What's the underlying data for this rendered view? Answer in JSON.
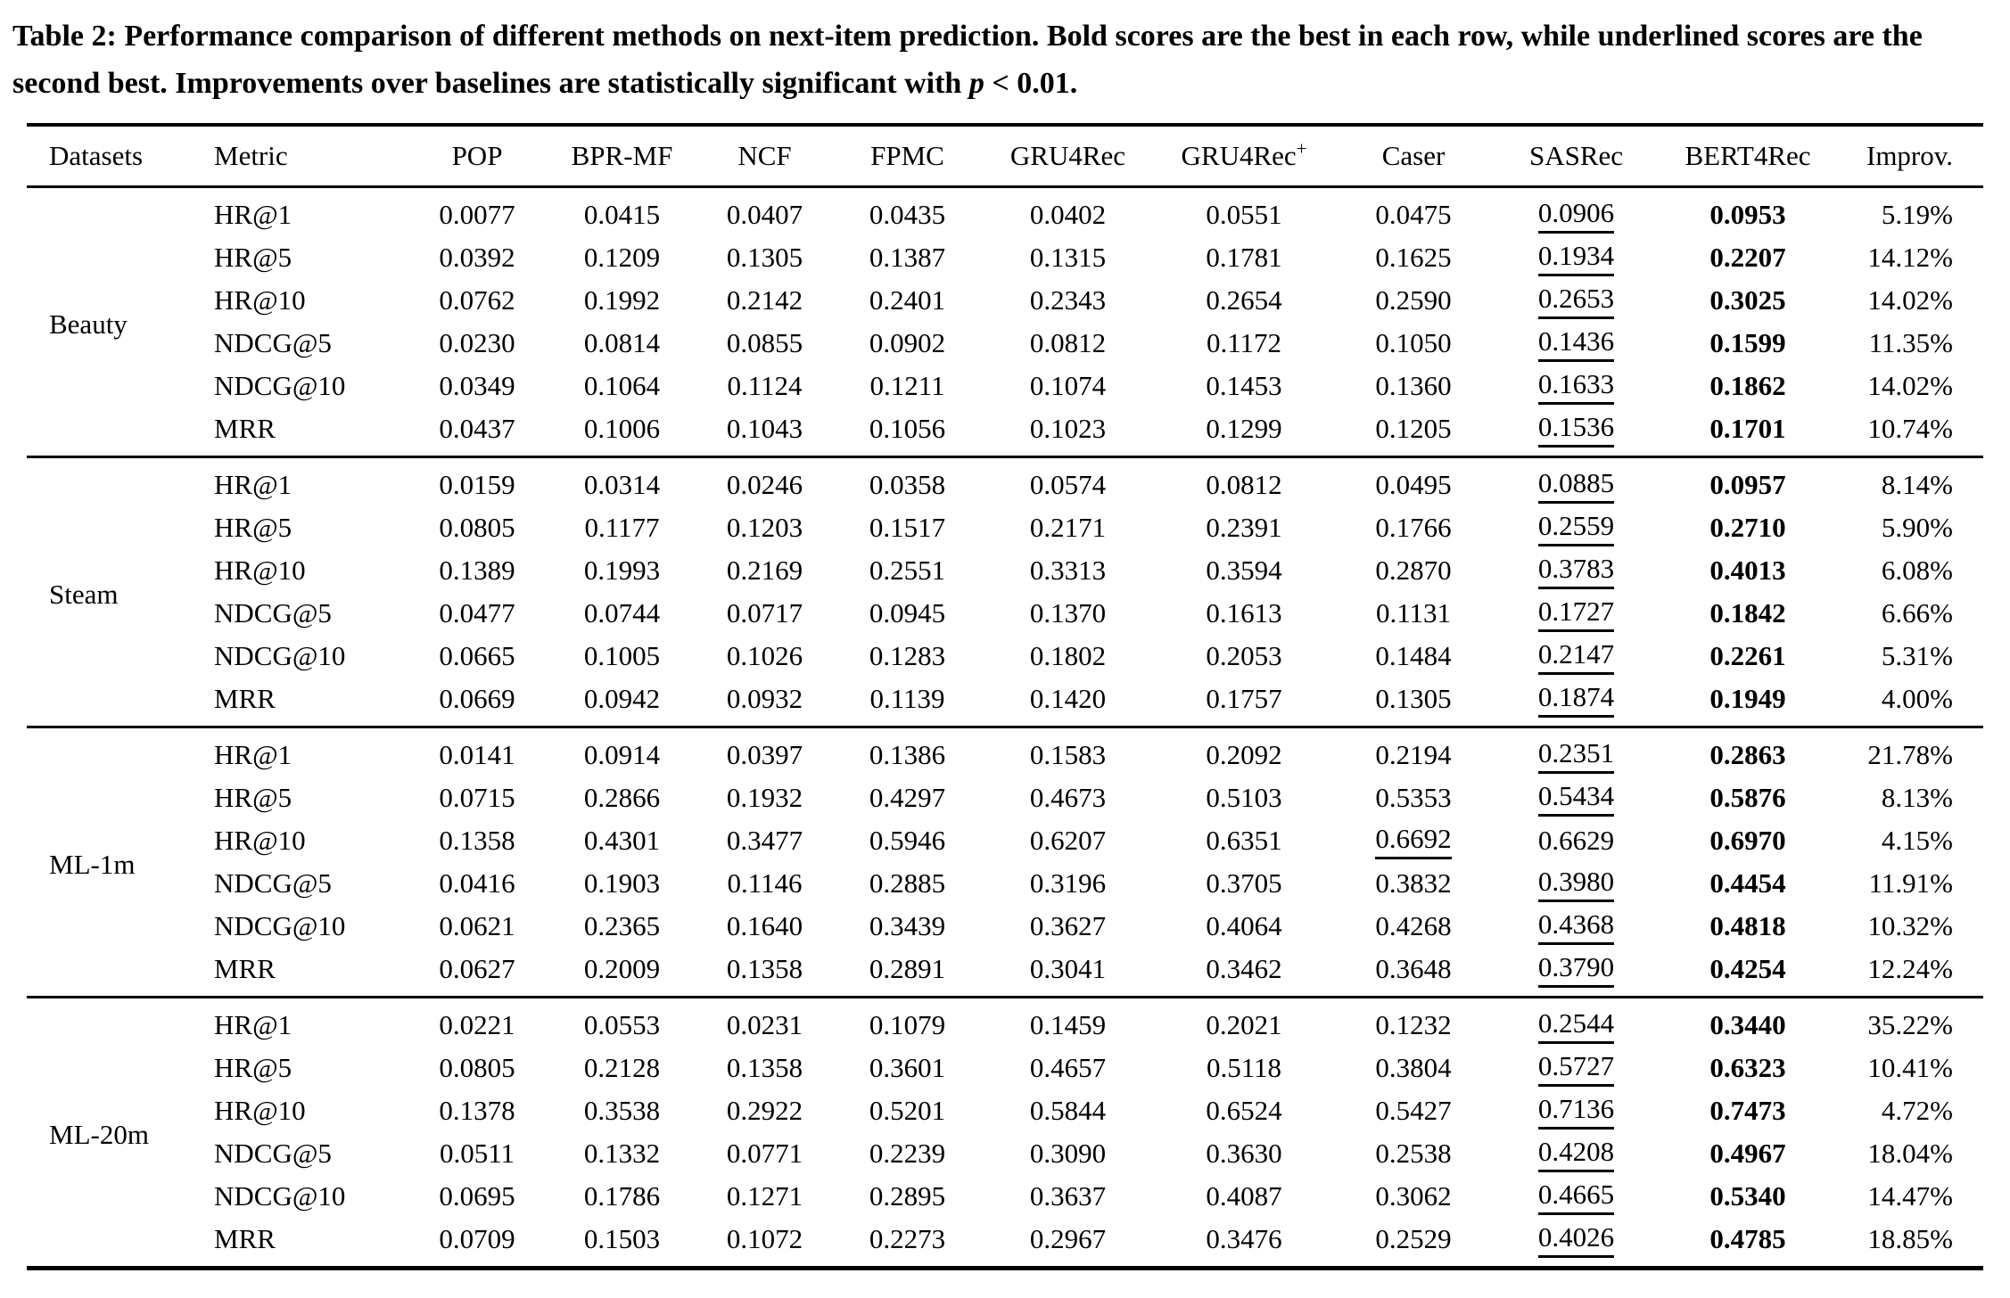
{
  "page": {
    "background": "#ffffff",
    "text_color": "#000000",
    "rule_color": "#000000"
  },
  "caption": {
    "lead": "Table 2: Performance comparison of different methods on next-item prediction. Bold scores are the best in each row, while underlined scores are the second best. Improvements over baselines are statistically significant with ",
    "math_var": "p",
    "tail": " < 0.01."
  },
  "table": {
    "columns": [
      {
        "label": "Datasets"
      },
      {
        "label": "Metric"
      },
      {
        "label": "POP"
      },
      {
        "label": "BPR-MF"
      },
      {
        "label": "NCF"
      },
      {
        "label": "FPMC"
      },
      {
        "label": "GRU4Rec"
      },
      {
        "label": "GRU4Rec",
        "sup": "+"
      },
      {
        "label": "Caser"
      },
      {
        "label": "SASRec"
      },
      {
        "label": "BERT4Rec"
      },
      {
        "label": "Improv."
      }
    ],
    "groups": [
      {
        "dataset": "Beauty",
        "rows": [
          {
            "metric": "HR@1",
            "values": [
              "0.0077",
              "0.0415",
              "0.0407",
              "0.0435",
              "0.0402",
              "0.0551",
              "0.0475",
              "0.0906",
              "0.0953"
            ],
            "second": 7,
            "best": 8,
            "improv": "5.19%"
          },
          {
            "metric": "HR@5",
            "values": [
              "0.0392",
              "0.1209",
              "0.1305",
              "0.1387",
              "0.1315",
              "0.1781",
              "0.1625",
              "0.1934",
              "0.2207"
            ],
            "second": 7,
            "best": 8,
            "improv": "14.12%"
          },
          {
            "metric": "HR@10",
            "values": [
              "0.0762",
              "0.1992",
              "0.2142",
              "0.2401",
              "0.2343",
              "0.2654",
              "0.2590",
              "0.2653",
              "0.3025"
            ],
            "second": 7,
            "best": 8,
            "improv": "14.02%"
          },
          {
            "metric": "NDCG@5",
            "values": [
              "0.0230",
              "0.0814",
              "0.0855",
              "0.0902",
              "0.0812",
              "0.1172",
              "0.1050",
              "0.1436",
              "0.1599"
            ],
            "second": 7,
            "best": 8,
            "improv": "11.35%"
          },
          {
            "metric": "NDCG@10",
            "values": [
              "0.0349",
              "0.1064",
              "0.1124",
              "0.1211",
              "0.1074",
              "0.1453",
              "0.1360",
              "0.1633",
              "0.1862"
            ],
            "second": 7,
            "best": 8,
            "improv": "14.02%"
          },
          {
            "metric": "MRR",
            "values": [
              "0.0437",
              "0.1006",
              "0.1043",
              "0.1056",
              "0.1023",
              "0.1299",
              "0.1205",
              "0.1536",
              "0.1701"
            ],
            "second": 7,
            "best": 8,
            "improv": "10.74%"
          }
        ]
      },
      {
        "dataset": "Steam",
        "rows": [
          {
            "metric": "HR@1",
            "values": [
              "0.0159",
              "0.0314",
              "0.0246",
              "0.0358",
              "0.0574",
              "0.0812",
              "0.0495",
              "0.0885",
              "0.0957"
            ],
            "second": 7,
            "best": 8,
            "improv": "8.14%"
          },
          {
            "metric": "HR@5",
            "values": [
              "0.0805",
              "0.1177",
              "0.1203",
              "0.1517",
              "0.2171",
              "0.2391",
              "0.1766",
              "0.2559",
              "0.2710"
            ],
            "second": 7,
            "best": 8,
            "improv": "5.90%"
          },
          {
            "metric": "HR@10",
            "values": [
              "0.1389",
              "0.1993",
              "0.2169",
              "0.2551",
              "0.3313",
              "0.3594",
              "0.2870",
              "0.3783",
              "0.4013"
            ],
            "second": 7,
            "best": 8,
            "improv": "6.08%"
          },
          {
            "metric": "NDCG@5",
            "values": [
              "0.0477",
              "0.0744",
              "0.0717",
              "0.0945",
              "0.1370",
              "0.1613",
              "0.1131",
              "0.1727",
              "0.1842"
            ],
            "second": 7,
            "best": 8,
            "improv": "6.66%"
          },
          {
            "metric": "NDCG@10",
            "values": [
              "0.0665",
              "0.1005",
              "0.1026",
              "0.1283",
              "0.1802",
              "0.2053",
              "0.1484",
              "0.2147",
              "0.2261"
            ],
            "second": 7,
            "best": 8,
            "improv": "5.31%"
          },
          {
            "metric": "MRR",
            "values": [
              "0.0669",
              "0.0942",
              "0.0932",
              "0.1139",
              "0.1420",
              "0.1757",
              "0.1305",
              "0.1874",
              "0.1949"
            ],
            "second": 7,
            "best": 8,
            "improv": "4.00%"
          }
        ]
      },
      {
        "dataset": "ML-1m",
        "rows": [
          {
            "metric": "HR@1",
            "values": [
              "0.0141",
              "0.0914",
              "0.0397",
              "0.1386",
              "0.1583",
              "0.2092",
              "0.2194",
              "0.2351",
              "0.2863"
            ],
            "second": 7,
            "best": 8,
            "improv": "21.78%"
          },
          {
            "metric": "HR@5",
            "values": [
              "0.0715",
              "0.2866",
              "0.1932",
              "0.4297",
              "0.4673",
              "0.5103",
              "0.5353",
              "0.5434",
              "0.5876"
            ],
            "second": 7,
            "best": 8,
            "improv": "8.13%"
          },
          {
            "metric": "HR@10",
            "values": [
              "0.1358",
              "0.4301",
              "0.3477",
              "0.5946",
              "0.6207",
              "0.6351",
              "0.6692",
              "0.6629",
              "0.6970"
            ],
            "second": 6,
            "best": 8,
            "improv": "4.15%"
          },
          {
            "metric": "NDCG@5",
            "values": [
              "0.0416",
              "0.1903",
              "0.1146",
              "0.2885",
              "0.3196",
              "0.3705",
              "0.3832",
              "0.3980",
              "0.4454"
            ],
            "second": 7,
            "best": 8,
            "improv": "11.91%"
          },
          {
            "metric": "NDCG@10",
            "values": [
              "0.0621",
              "0.2365",
              "0.1640",
              "0.3439",
              "0.3627",
              "0.4064",
              "0.4268",
              "0.4368",
              "0.4818"
            ],
            "second": 7,
            "best": 8,
            "improv": "10.32%"
          },
          {
            "metric": "MRR",
            "values": [
              "0.0627",
              "0.2009",
              "0.1358",
              "0.2891",
              "0.3041",
              "0.3462",
              "0.3648",
              "0.3790",
              "0.4254"
            ],
            "second": 7,
            "best": 8,
            "improv": "12.24%"
          }
        ]
      },
      {
        "dataset": "ML-20m",
        "rows": [
          {
            "metric": "HR@1",
            "values": [
              "0.0221",
              "0.0553",
              "0.0231",
              "0.1079",
              "0.1459",
              "0.2021",
              "0.1232",
              "0.2544",
              "0.3440"
            ],
            "second": 7,
            "best": 8,
            "improv": "35.22%"
          },
          {
            "metric": "HR@5",
            "values": [
              "0.0805",
              "0.2128",
              "0.1358",
              "0.3601",
              "0.4657",
              "0.5118",
              "0.3804",
              "0.5727",
              "0.6323"
            ],
            "second": 7,
            "best": 8,
            "improv": "10.41%"
          },
          {
            "metric": "HR@10",
            "values": [
              "0.1378",
              "0.3538",
              "0.2922",
              "0.5201",
              "0.5844",
              "0.6524",
              "0.5427",
              "0.7136",
              "0.7473"
            ],
            "second": 7,
            "best": 8,
            "improv": "4.72%"
          },
          {
            "metric": "NDCG@5",
            "values": [
              "0.0511",
              "0.1332",
              "0.0771",
              "0.2239",
              "0.3090",
              "0.3630",
              "0.2538",
              "0.4208",
              "0.4967"
            ],
            "second": 7,
            "best": 8,
            "improv": "18.04%"
          },
          {
            "metric": "NDCG@10",
            "values": [
              "0.0695",
              "0.1786",
              "0.1271",
              "0.2895",
              "0.3637",
              "0.4087",
              "0.3062",
              "0.4665",
              "0.5340"
            ],
            "second": 7,
            "best": 8,
            "improv": "14.47%"
          },
          {
            "metric": "MRR",
            "values": [
              "0.0709",
              "0.1503",
              "0.1072",
              "0.2273",
              "0.2967",
              "0.3476",
              "0.2529",
              "0.4026",
              "0.4785"
            ],
            "second": 7,
            "best": 8,
            "improv": "18.85%"
          }
        ]
      }
    ]
  }
}
